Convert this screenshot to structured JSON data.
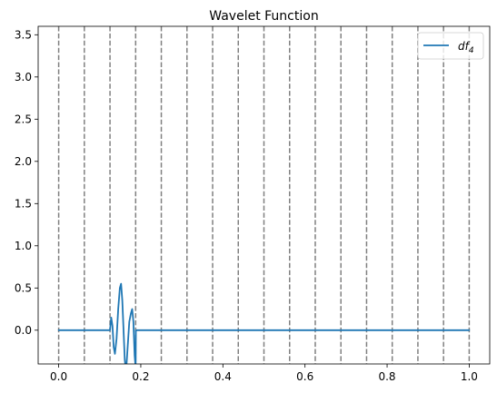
{
  "chart_data": {
    "type": "line",
    "title": "Wavelet Function",
    "xlabel": "",
    "ylabel": "",
    "xlim": [
      -0.05,
      1.05
    ],
    "ylim": [
      -0.4,
      3.6
    ],
    "x_ticks": [
      0.0,
      0.2,
      0.4,
      0.6,
      0.8,
      1.0
    ],
    "x_tick_labels": [
      "0.0",
      "0.2",
      "0.4",
      "0.6",
      "0.8",
      "1.0"
    ],
    "y_ticks": [
      0.0,
      0.5,
      1.0,
      1.5,
      2.0,
      2.5,
      3.0,
      3.5
    ],
    "y_tick_labels": [
      "0.0",
      "0.5",
      "1.0",
      "1.5",
      "2.0",
      "2.5",
      "3.0",
      "3.5"
    ],
    "grid": false,
    "legend_position": "top-right",
    "vertical_reference_lines": {
      "x": [
        0.0,
        0.0625,
        0.125,
        0.1875,
        0.25,
        0.3125,
        0.375,
        0.4375,
        0.5,
        0.5625,
        0.625,
        0.6875,
        0.75,
        0.8125,
        0.875,
        0.9375,
        1.0
      ],
      "color": "#808080",
      "style": "dashed"
    },
    "series": [
      {
        "legend_base": "df",
        "legend_sub": "4",
        "color": "#1f77b4",
        "x": [
          0.0,
          0.1,
          0.125,
          0.128,
          0.131,
          0.134,
          0.137,
          0.141,
          0.145,
          0.149,
          0.152,
          0.155,
          0.158,
          0.161,
          0.164,
          0.168,
          0.172,
          0.176,
          0.179,
          0.182,
          0.185,
          0.1875,
          0.188,
          0.19,
          0.2,
          1.0
        ],
        "y": [
          0.0,
          0.0,
          0.0,
          0.15,
          0.05,
          -0.2,
          -0.28,
          -0.1,
          0.25,
          0.5,
          0.55,
          0.35,
          0.0,
          -0.35,
          -0.5,
          -0.2,
          0.1,
          0.2,
          0.25,
          0.1,
          -0.3,
          -0.45,
          0.0,
          0.0,
          0.0,
          0.0
        ]
      }
    ]
  }
}
